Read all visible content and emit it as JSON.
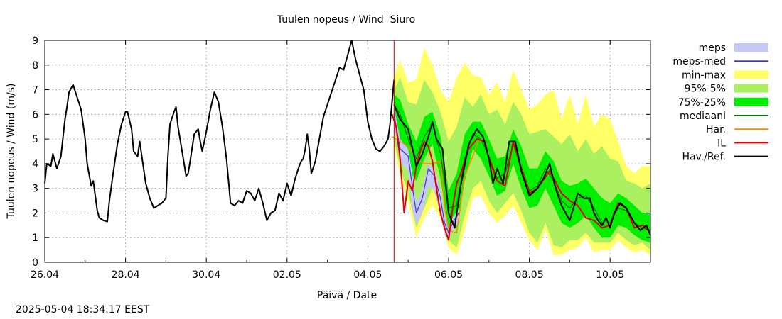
{
  "chart_data": {
    "type": "line",
    "title": "Tuulen nopeus / Wind  Siuro",
    "xlabel": "Päivä / Date",
    "ylabel": "Tuulen nopeus / Wind (m/s)",
    "ylim": [
      0,
      9
    ],
    "xlim_days": [
      0,
      15
    ],
    "x_unit": "days since 26.04 00:00",
    "grid": true,
    "legend_position": "outside-right",
    "y_ticks": [
      0,
      1,
      2,
      3,
      4,
      5,
      6,
      7,
      8,
      9
    ],
    "x_ticks": [
      {
        "day": 0,
        "label": "26.04"
      },
      {
        "day": 2,
        "label": "28.04"
      },
      {
        "day": 4,
        "label": "30.04"
      },
      {
        "day": 6,
        "label": "02.05"
      },
      {
        "day": 8,
        "label": "04.05"
      },
      {
        "day": 10,
        "label": "06.05"
      },
      {
        "day": 12,
        "label": "08.05"
      },
      {
        "day": 14,
        "label": "10.05"
      }
    ],
    "now_marker_day": 8.65,
    "colors": {
      "meps": "#c6c8f5",
      "meps_med": "#3b3bd0",
      "minmax": "#ffff66",
      "p95_5": "#aaf060",
      "p75_25": "#00ee00",
      "mediaani": "#007700",
      "har": "#ff8c00",
      "il": "#e00000",
      "hav": "#000000",
      "marker": "#cc0000"
    },
    "legend": [
      {
        "key": "meps",
        "label": "meps",
        "style": "band",
        "color": "#c6c8f5"
      },
      {
        "key": "meps_med",
        "label": "meps-med",
        "style": "line",
        "color": "#3b3bd0"
      },
      {
        "key": "minmax",
        "label": "min-max",
        "style": "band",
        "color": "#ffff66"
      },
      {
        "key": "p95_5",
        "label": "95%-5%",
        "style": "band",
        "color": "#aaf060"
      },
      {
        "key": "p75_25",
        "label": "75%-25%",
        "style": "band",
        "color": "#00ee00"
      },
      {
        "key": "mediaani",
        "label": "mediaani",
        "style": "line",
        "color": "#007700"
      },
      {
        "key": "har",
        "label": "Har.",
        "style": "line",
        "color": "#ff8c00"
      },
      {
        "key": "il",
        "label": "IL",
        "style": "line",
        "color": "#e00000"
      },
      {
        "key": "hav",
        "label": "Hav./Ref.",
        "style": "line",
        "color": "#000000"
      }
    ],
    "series": [
      {
        "name": "Hav./Ref.",
        "key": "hav",
        "x": [
          0,
          0.05,
          0.15,
          0.2,
          0.3,
          0.4,
          0.5,
          0.55,
          0.6,
          0.7,
          0.8,
          0.9,
          1.0,
          1.05,
          1.15,
          1.2,
          1.3,
          1.35,
          1.45,
          1.55,
          1.6,
          1.7,
          1.8,
          1.9,
          2.0,
          2.05,
          2.15,
          2.2,
          2.3,
          2.35,
          2.5,
          2.6,
          2.7,
          2.8,
          2.9,
          3.0,
          3.05,
          3.1,
          3.2,
          3.25,
          3.3,
          3.45,
          3.5,
          3.55,
          3.6,
          3.7,
          3.8,
          3.85,
          3.9,
          4.0,
          4.1,
          4.2,
          4.3,
          4.4,
          4.5,
          4.6,
          4.7,
          4.8,
          4.9,
          5.0,
          5.1,
          5.2,
          5.3,
          5.4,
          5.5,
          5.6,
          5.7,
          5.8,
          5.9,
          6.0,
          6.1,
          6.2,
          6.3,
          6.35,
          6.4,
          6.45,
          6.5,
          6.55,
          6.6,
          6.7,
          6.8,
          6.9,
          7.0,
          7.1,
          7.2,
          7.3,
          7.4,
          7.5,
          7.6,
          7.7,
          7.8,
          7.9,
          8.0,
          8.1,
          8.2,
          8.3,
          8.4,
          8.5,
          8.55,
          8.6,
          8.65
        ],
        "values": [
          3.2,
          4.0,
          3.9,
          4.4,
          3.8,
          4.3,
          5.8,
          6.3,
          6.9,
          7.2,
          6.7,
          6.2,
          5.0,
          4.0,
          3.1,
          3.3,
          2.1,
          1.8,
          1.7,
          1.65,
          2.5,
          3.7,
          4.8,
          5.6,
          6.1,
          6.1,
          5.4,
          4.5,
          4.3,
          4.9,
          3.2,
          2.6,
          2.2,
          2.3,
          2.4,
          2.6,
          4.3,
          5.6,
          6.1,
          6.3,
          5.5,
          4.0,
          3.5,
          3.6,
          4.1,
          5.2,
          5.4,
          4.9,
          4.5,
          5.3,
          6.2,
          6.9,
          6.5,
          5.5,
          4.2,
          2.4,
          2.3,
          2.5,
          2.4,
          2.9,
          2.8,
          2.5,
          3.0,
          2.4,
          1.7,
          2.0,
          2.1,
          2.8,
          2.5,
          3.2,
          2.7,
          3.4,
          3.9,
          4.1,
          4.2,
          4.6,
          5.2,
          4.6,
          3.6,
          4.1,
          5.0,
          5.9,
          6.4,
          6.9,
          7.4,
          7.9,
          7.8,
          8.4,
          9.0,
          8.2,
          7.6,
          7.0,
          5.7,
          5.0,
          4.6,
          4.5,
          4.7,
          5.0,
          5.6,
          6.5,
          7.4
        ]
      },
      {
        "name": "Hav./Ref. forecast",
        "key": "hav",
        "x": [
          8.65,
          8.8,
          9.0,
          9.2,
          9.35,
          9.5,
          9.6,
          9.7,
          9.85,
          10.0,
          10.15,
          10.3,
          10.5,
          10.7,
          10.85,
          11.0,
          11.1,
          11.2,
          11.35,
          11.5,
          11.65,
          11.8,
          12.0,
          12.2,
          12.35,
          12.5,
          12.65,
          12.8,
          13.0,
          13.2,
          13.35,
          13.5,
          13.6,
          13.7,
          13.8,
          13.9,
          14.0,
          14.1,
          14.25,
          14.4,
          14.6,
          14.75,
          14.9,
          15.0
        ],
        "values": [
          6.4,
          5.8,
          5.4,
          3.9,
          4.4,
          5.1,
          5.7,
          5.0,
          4.6,
          2.0,
          1.4,
          3.1,
          4.8,
          5.4,
          5.1,
          4.2,
          3.2,
          3.8,
          3.2,
          4.9,
          4.9,
          3.7,
          2.7,
          3.0,
          3.4,
          4.0,
          3.0,
          2.3,
          1.7,
          2.8,
          2.6,
          2.6,
          2.0,
          1.7,
          1.5,
          1.8,
          1.4,
          2.0,
          2.4,
          2.2,
          1.6,
          1.3,
          1.5,
          1.1
        ]
      },
      {
        "name": "IL",
        "key": "il",
        "x": [
          8.6,
          8.7,
          8.8,
          8.9,
          9.0,
          9.1,
          9.2,
          9.3,
          9.4,
          9.5,
          9.6,
          9.7,
          9.8,
          9.9,
          10.0,
          10.1,
          10.2,
          10.3,
          10.5,
          10.7,
          10.9,
          11.0,
          11.2,
          11.4,
          11.6,
          11.8,
          12.0,
          12.2,
          12.5,
          12.8,
          13.0,
          13.2,
          13.4,
          13.6,
          13.8,
          14.0,
          14.2,
          14.4,
          14.6,
          14.8,
          15.0
        ],
        "values": [
          6.0,
          5.5,
          4.2,
          2.0,
          3.3,
          2.9,
          3.9,
          4.5,
          4.9,
          4.7,
          4.1,
          3.0,
          2.0,
          1.4,
          0.9,
          2.2,
          3.2,
          3.6,
          4.6,
          5.0,
          4.9,
          4.2,
          3.3,
          3.1,
          4.9,
          3.8,
          2.8,
          3.0,
          3.7,
          2.8,
          2.5,
          2.3,
          1.8,
          1.7,
          1.4,
          1.5,
          2.4,
          2.2,
          1.4,
          1.5,
          1.2
        ]
      },
      {
        "name": "Har.",
        "key": "har",
        "x": [
          8.6,
          8.8,
          9.0,
          9.2,
          9.4,
          9.6,
          9.8,
          9.9,
          10.0,
          10.2,
          10.4,
          10.6,
          10.75
        ],
        "values": [
          5.1,
          4.9,
          4.7,
          4.2,
          4.0,
          4.0,
          4.1,
          2.3,
          1.3,
          1.2,
          3.5,
          4.3,
          5.0
        ]
      },
      {
        "name": "mediaani",
        "key": "mediaani",
        "x": [
          8.65,
          8.8,
          9.0,
          9.2,
          9.4,
          9.6,
          9.8,
          10.0,
          10.2,
          10.4,
          10.6,
          10.8,
          11.0,
          11.2,
          11.4,
          11.6,
          11.8,
          12.0,
          12.2,
          12.4,
          12.6,
          12.8,
          13.0,
          13.2,
          13.4,
          13.6,
          13.8,
          14.0,
          14.2,
          14.4,
          14.6,
          14.8,
          15.0
        ],
        "values": [
          6.4,
          6.0,
          5.0,
          4.2,
          5.1,
          5.6,
          4.4,
          2.2,
          2.3,
          4.2,
          5.2,
          5.0,
          4.3,
          3.4,
          3.6,
          4.8,
          3.9,
          2.9,
          3.1,
          3.8,
          3.3,
          2.5,
          2.2,
          2.6,
          2.7,
          2.2,
          1.6,
          1.6,
          2.2,
          2.1,
          1.6,
          1.4,
          1.3
        ]
      },
      {
        "name": "meps-med",
        "key": "meps_med",
        "x": [
          8.65,
          8.8,
          9.0,
          9.1,
          9.2,
          9.35,
          9.5,
          9.65,
          9.8,
          9.9,
          10.0,
          10.1,
          10.25
        ],
        "values": [
          6.0,
          4.6,
          4.3,
          3.1,
          2.0,
          2.6,
          3.8,
          3.5,
          2.6,
          1.6,
          1.2,
          1.6,
          2.0
        ]
      }
    ],
    "bands": [
      {
        "name": "min-max",
        "key": "minmax",
        "x": [
          8.65,
          8.8,
          9.0,
          9.2,
          9.4,
          9.6,
          9.8,
          10.0,
          10.2,
          10.4,
          10.6,
          10.8,
          11.0,
          11.2,
          11.4,
          11.6,
          11.8,
          12.0,
          12.2,
          12.4,
          12.6,
          12.8,
          13.0,
          13.2,
          13.4,
          13.6,
          13.8,
          14.0,
          14.2,
          14.4,
          14.6,
          14.8,
          15.0
        ],
        "upper": [
          7.5,
          8.2,
          7.3,
          7.4,
          8.7,
          8.0,
          7.0,
          6.5,
          7.5,
          8.1,
          7.6,
          7.5,
          6.8,
          7.3,
          6.5,
          7.8,
          7.0,
          6.2,
          6.4,
          6.8,
          7.0,
          5.8,
          6.8,
          5.6,
          6.8,
          5.5,
          6.0,
          5.8,
          4.9,
          3.9,
          3.6,
          3.9,
          3.9
        ],
        "lower": [
          4.7,
          3.5,
          2.4,
          1.0,
          1.8,
          2.3,
          1.8,
          0.6,
          0.3,
          1.3,
          2.6,
          2.7,
          2.0,
          1.6,
          1.9,
          2.3,
          1.6,
          0.9,
          0.5,
          1.3,
          0.3,
          0.3,
          0.5,
          0.6,
          1.0,
          0.4,
          0.5,
          0.5,
          0.9,
          0.6,
          0.4,
          0.5,
          0.3
        ]
      },
      {
        "name": "95%-5%",
        "key": "p95_5",
        "x": [
          8.65,
          8.8,
          9.0,
          9.2,
          9.4,
          9.6,
          9.8,
          10.0,
          10.2,
          10.4,
          10.6,
          10.8,
          11.0,
          11.2,
          11.4,
          11.6,
          11.8,
          12.0,
          12.2,
          12.4,
          12.6,
          12.8,
          13.0,
          13.2,
          13.4,
          13.6,
          13.8,
          14.0,
          14.2,
          14.4,
          14.6,
          14.8,
          15.0
        ],
        "upper": [
          7.0,
          7.5,
          6.5,
          6.4,
          7.4,
          6.9,
          6.1,
          4.9,
          5.5,
          6.7,
          6.3,
          6.8,
          6.0,
          6.2,
          5.6,
          6.5,
          6.0,
          5.2,
          5.3,
          5.4,
          5.1,
          4.8,
          5.2,
          4.5,
          5.0,
          4.4,
          4.7,
          4.2,
          4.1,
          3.3,
          3.2,
          3.0,
          3.2
        ],
        "lower": [
          5.0,
          3.8,
          2.8,
          1.4,
          2.2,
          3.0,
          2.3,
          0.9,
          0.6,
          1.9,
          3.0,
          3.3,
          2.5,
          2.0,
          2.4,
          2.8,
          2.1,
          1.2,
          0.8,
          1.6,
          0.7,
          0.6,
          0.9,
          0.9,
          1.2,
          0.8,
          0.8,
          0.8,
          1.2,
          0.9,
          0.7,
          0.8,
          0.5
        ]
      },
      {
        "name": "75%-25%",
        "key": "p75_25",
        "x": [
          8.65,
          8.8,
          9.0,
          9.2,
          9.4,
          9.6,
          9.8,
          10.0,
          10.2,
          10.4,
          10.6,
          10.8,
          11.0,
          11.2,
          11.4,
          11.6,
          11.8,
          12.0,
          12.2,
          12.4,
          12.6,
          12.8,
          13.0,
          13.2,
          13.4,
          13.6,
          13.8,
          14.0,
          14.2,
          14.4,
          14.6,
          14.8,
          15.0
        ],
        "upper": [
          6.8,
          6.6,
          5.6,
          4.9,
          5.9,
          6.1,
          5.1,
          2.9,
          3.6,
          5.2,
          5.7,
          5.7,
          5.0,
          4.2,
          4.3,
          5.4,
          4.7,
          3.8,
          3.8,
          4.5,
          4.1,
          3.3,
          3.1,
          3.2,
          3.4,
          3.0,
          2.6,
          2.4,
          2.8,
          2.6,
          2.3,
          2.0,
          2.0
        ],
        "lower": [
          5.6,
          5.0,
          3.8,
          3.3,
          4.2,
          4.8,
          3.4,
          1.3,
          1.4,
          3.3,
          4.6,
          4.2,
          3.5,
          2.7,
          2.9,
          4.0,
          3.0,
          2.2,
          2.3,
          3.0,
          2.3,
          1.6,
          1.4,
          1.6,
          1.9,
          1.4,
          1.0,
          1.0,
          1.5,
          1.4,
          1.1,
          0.9,
          0.8
        ]
      },
      {
        "name": "meps",
        "key": "meps",
        "x": [
          8.65,
          8.8,
          9.0,
          9.1,
          9.2,
          9.35,
          9.5,
          9.65,
          9.8,
          9.9,
          10.0,
          10.1,
          10.25
        ],
        "upper": [
          6.3,
          5.0,
          4.6,
          3.6,
          2.4,
          3.0,
          4.0,
          3.8,
          2.9,
          1.9,
          1.4,
          1.8,
          2.2
        ],
        "lower": [
          5.4,
          4.1,
          3.7,
          2.1,
          1.5,
          2.0,
          3.1,
          2.9,
          1.9,
          1.1,
          0.9,
          1.3,
          1.6
        ]
      }
    ]
  },
  "footer": {
    "timestamp": "2025-05-04 18:34:17 EEST"
  }
}
